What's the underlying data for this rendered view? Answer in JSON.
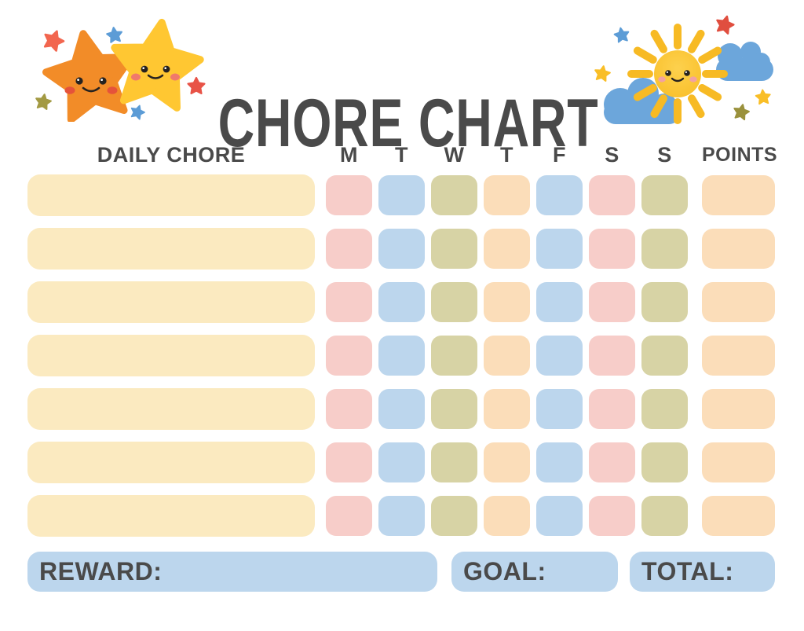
{
  "page": {
    "title": "CHORE CHART",
    "background": "#FFFFFF"
  },
  "header": {
    "chore_column_label": "DAILY CHORE",
    "day_labels": [
      "M",
      "T",
      "W",
      "T",
      "F",
      "S",
      "S"
    ],
    "points_label": "POINTS"
  },
  "grid": {
    "row_count": 7,
    "day_cell_colors": [
      "pink",
      "blue",
      "khaki",
      "peach",
      "blue",
      "pink",
      "khaki"
    ],
    "points_cell_color": "peach",
    "chore_cells_empty": true
  },
  "footer": {
    "reward_label": "REWARD:",
    "goal_label": "GOAL:",
    "total_label": "TOTAL:"
  },
  "colors": {
    "chore_bar": "#FBEAC0",
    "pink": "#F7CDC9",
    "blue": "#BCD6ED",
    "khaki": "#D7D3A5",
    "peach": "#FBDDB9",
    "footer_bar": "#BCD6ED",
    "text": "#4A4A4A"
  },
  "decorations": {
    "left": {
      "name": "two-smiling-stars",
      "orange_star": "#F28C28",
      "yellow_star": "#FFC732",
      "orange_cheeks": "#E5533A",
      "yellow_cheeks": "#F0796B",
      "accent_stars": [
        "#F2664F",
        "#5C9CD6",
        "#A39A43",
        "#E85347"
      ]
    },
    "right": {
      "name": "smiling-sun-with-clouds",
      "sun": "#FBC42E",
      "rays": "#F7BA24",
      "cloud": "#6CA6DB",
      "sun_cheeks": "#F2A2A2",
      "accent_stars": [
        "#5C9CD6",
        "#E04E3F",
        "#F9BE27",
        "#9A913C"
      ]
    }
  }
}
